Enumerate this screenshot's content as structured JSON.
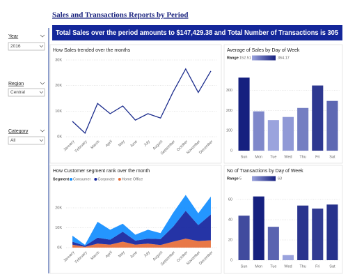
{
  "header": {
    "title": "Sales and Transactions Reports by Period",
    "banner": "Total Sales over the period amounts to $147,429.38 and Total Number of Transactions is 305"
  },
  "slicers": [
    {
      "label": "Year",
      "value": "2016"
    },
    {
      "label": "Region",
      "value": "Central"
    },
    {
      "label": "Category",
      "value": "All"
    }
  ],
  "chart_data": [
    {
      "type": "line",
      "title": "How Sales trended over the months",
      "categories": [
        "January",
        "February",
        "March",
        "April",
        "May",
        "June",
        "July",
        "August",
        "September",
        "October",
        "November",
        "December"
      ],
      "values": [
        6000,
        1400,
        13000,
        9000,
        12000,
        6500,
        9000,
        7300,
        17500,
        26500,
        17300,
        25700
      ],
      "color": "#1a2b8c",
      "ylim": [
        0,
        30000
      ],
      "yticks": [
        {
          "value": 0,
          "label": "0K"
        },
        {
          "value": 10000,
          "label": "10K"
        },
        {
          "value": 20000,
          "label": "20K"
        },
        {
          "value": 30000,
          "label": "30K"
        }
      ],
      "grid": true
    },
    {
      "type": "bar",
      "title": "Average of Sales by Day of Week",
      "categories": [
        "Sun",
        "Mon",
        "Tue",
        "Wed",
        "Thu",
        "Fri",
        "Sat"
      ],
      "values": [
        364.17,
        196,
        152.51,
        168,
        213,
        325,
        248
      ],
      "color_range": {
        "label": "Range",
        "min": 152.51,
        "max": 364.17,
        "colors": [
          "#9aa3dd",
          "#15207f"
        ]
      },
      "ylim": [
        0,
        400
      ],
      "yticks": [
        0,
        100,
        200,
        300
      ],
      "grid": true
    },
    {
      "type": "area",
      "title": "How Customer segment rank over the month",
      "stacked": true,
      "legend_title": "Segment",
      "categories": [
        "January",
        "February",
        "March",
        "April",
        "May",
        "June",
        "July",
        "August",
        "September",
        "October",
        "November",
        "December"
      ],
      "series": [
        {
          "name": "Consumer",
          "color": "#118dff",
          "values": [
            3000,
            500,
            8000,
            5000,
            4000,
            3000,
            4500,
            3000,
            7000,
            8000,
            6000,
            9000
          ]
        },
        {
          "name": "Corporate",
          "color": "#12239e",
          "values": [
            1500,
            500,
            3000,
            2500,
            5000,
            2000,
            2500,
            3000,
            7500,
            14000,
            8000,
            13000
          ]
        },
        {
          "name": "Home Office",
          "color": "#e66c37",
          "values": [
            1500,
            400,
            2000,
            1500,
            3000,
            1500,
            2000,
            1300,
            3000,
            4500,
            3300,
            3700
          ]
        }
      ],
      "ylim": [
        0,
        30000
      ],
      "yticks": [
        {
          "value": 0,
          "label": "0K"
        },
        {
          "value": 10000,
          "label": "10K"
        },
        {
          "value": 20000,
          "label": "20K"
        }
      ],
      "grid": true
    },
    {
      "type": "bar",
      "title": "No of Transactions by Day of Week",
      "categories": [
        "Sun",
        "Mon",
        "Tue",
        "Wed",
        "Thu",
        "Fri",
        "Sat"
      ],
      "values": [
        44,
        63,
        33,
        5,
        54,
        51,
        55
      ],
      "color_range": {
        "label": "Range",
        "min": 5,
        "max": 63,
        "colors": [
          "#9aa3dd",
          "#15207f"
        ]
      },
      "ylim": [
        0,
        70
      ],
      "yticks": [
        0,
        20,
        40,
        60
      ],
      "grid": true
    }
  ]
}
